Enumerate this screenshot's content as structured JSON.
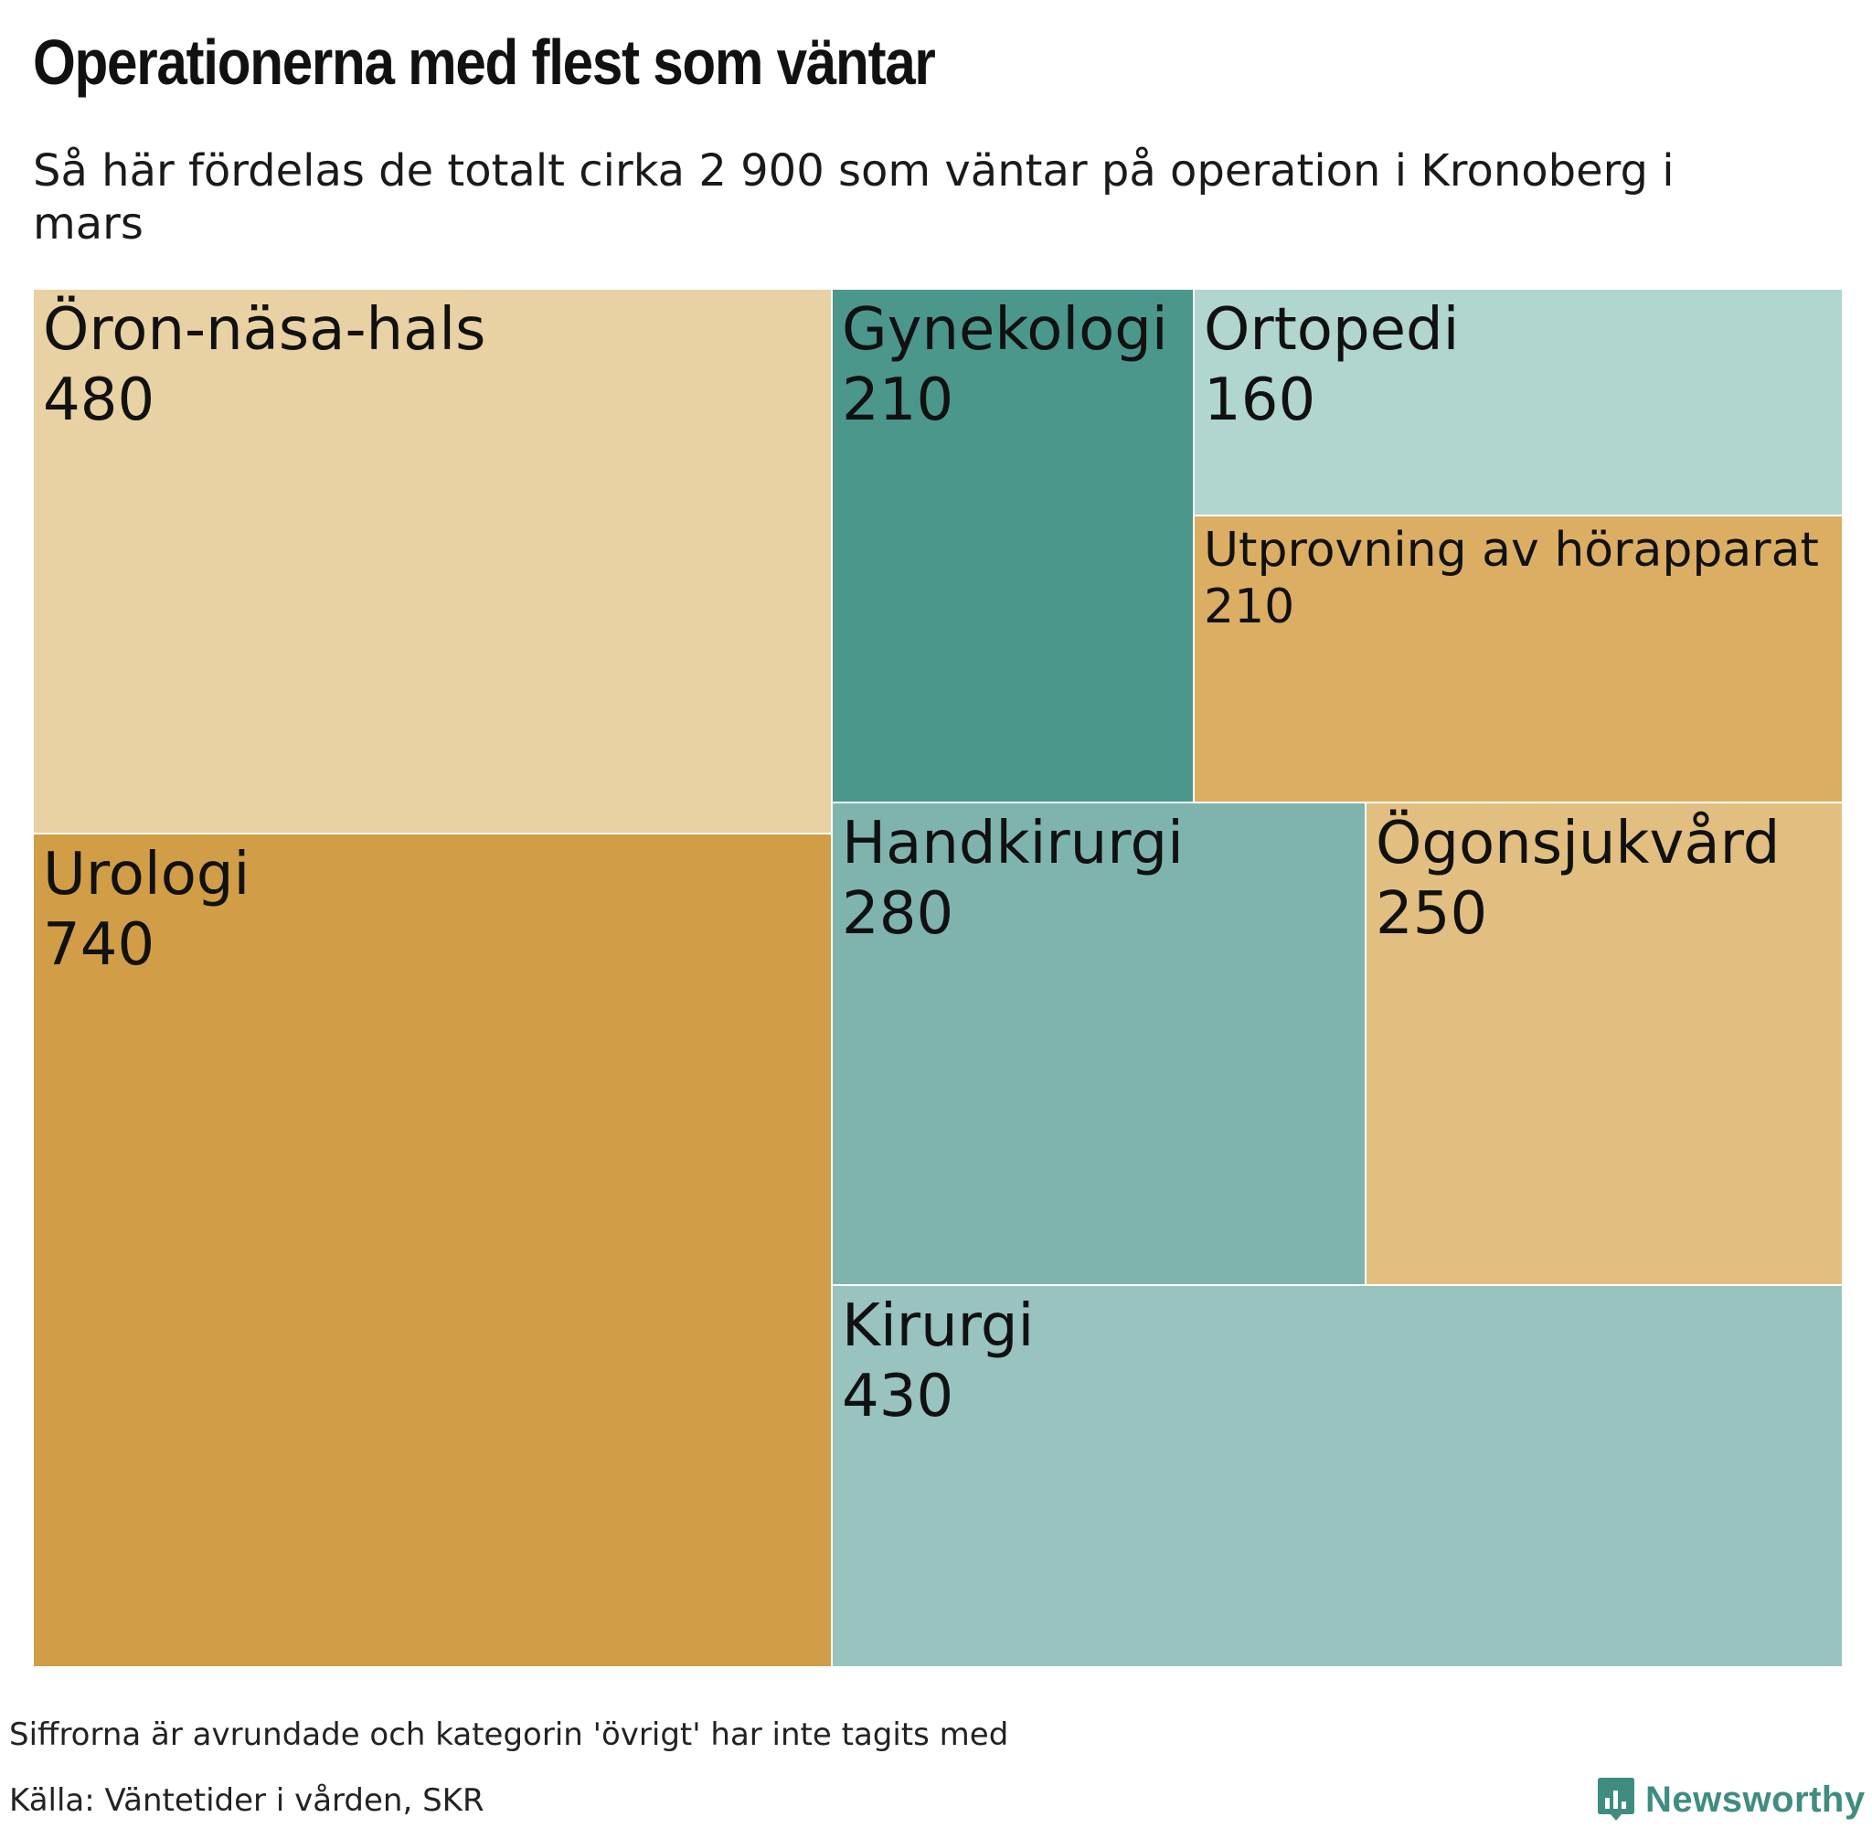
{
  "header": {
    "title": "Operationerna med flest som väntar",
    "subtitle": "Så här fördelas de totalt cirka 2 900 som väntar på operation i Kronoberg i mars"
  },
  "chart_data": {
    "type": "treemap",
    "title": "Operationerna med flest som väntar",
    "subtitle": "Så här fördelas de totalt cirka 2 900 som väntar på operation i Kronoberg i mars",
    "items": [
      {
        "name": "Öron-näsa-hals",
        "value": 480,
        "color": "#e8d2a3"
      },
      {
        "name": "Urologi",
        "value": 740,
        "color": "#d19d47"
      },
      {
        "name": "Gynekologi",
        "value": 210,
        "color": "#4c978b"
      },
      {
        "name": "Ortopedi",
        "value": 160,
        "color": "#b1d6cf"
      },
      {
        "name": "Utprovning av hörapparat",
        "value": 210,
        "color": "#dbae63"
      },
      {
        "name": "Handkirurgi",
        "value": 280,
        "color": "#7fb4ae"
      },
      {
        "name": "Ögonsjukvård",
        "value": 250,
        "color": "#e2bf81"
      },
      {
        "name": "Kirurgi",
        "value": 430,
        "color": "#98c3bf"
      }
    ]
  },
  "footer": {
    "note": "Siffrorna är avrundade och kategorin 'övrigt' har inte tagits med",
    "source": "Källa: Väntetider i vården, SKR",
    "brand": "Newsworthy",
    "brand_color": "#3f8c80",
    "brand_icon": "bar-chart-speech-bubble-icon"
  }
}
